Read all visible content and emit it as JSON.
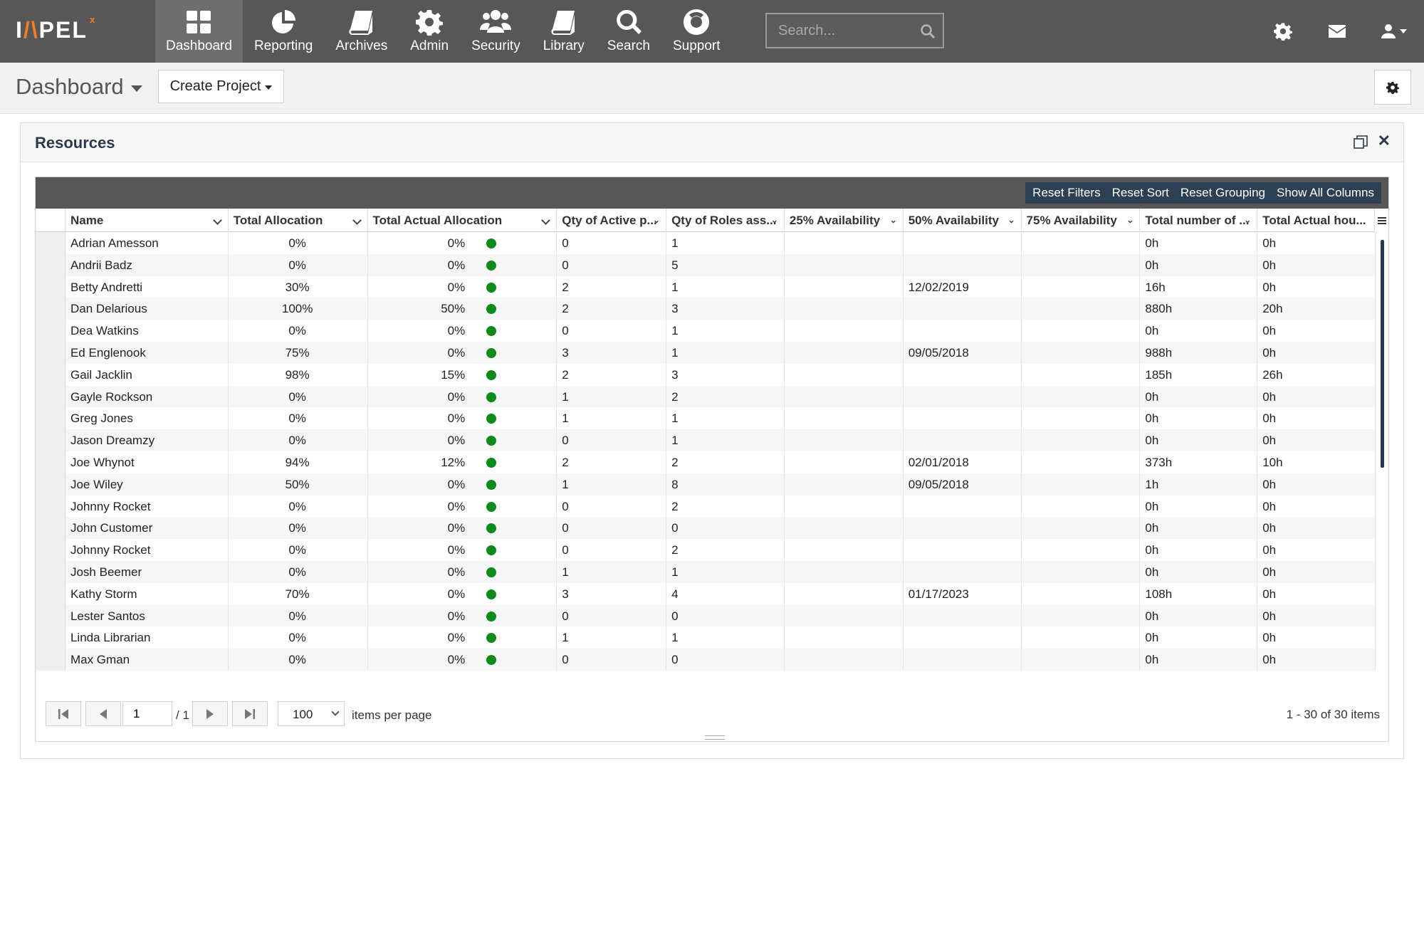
{
  "nav": {
    "logo": {
      "prefix": "I",
      "accent": "/\\",
      "rest": "PEL",
      "sup": "x"
    },
    "items": [
      {
        "label": "Dashboard",
        "icon": "dashboard-icon",
        "active": true
      },
      {
        "label": "Reporting",
        "icon": "pie-chart-icon",
        "active": false
      },
      {
        "label": "Archives",
        "icon": "book-icon",
        "active": false
      },
      {
        "label": "Admin",
        "icon": "gear-icon",
        "active": false
      },
      {
        "label": "Security",
        "icon": "users-icon",
        "active": false
      },
      {
        "label": "Library",
        "icon": "book-icon",
        "active": false
      },
      {
        "label": "Search",
        "icon": "search-icon",
        "active": false
      },
      {
        "label": "Support",
        "icon": "life-ring-icon",
        "active": false
      }
    ],
    "search_placeholder": "Search...",
    "right_icons": [
      "gear-icon",
      "envelope-icon",
      "user-icon"
    ]
  },
  "subheader": {
    "title": "Dashboard",
    "create_label": "Create Project"
  },
  "panel": {
    "title": "Resources"
  },
  "grid": {
    "toolbar": [
      "Reset Filters",
      "Reset Sort",
      "Reset Grouping",
      "Show All Columns"
    ],
    "columns": [
      {
        "label": "Name",
        "w": 229
      },
      {
        "label": "Total Allocation",
        "w": 196
      },
      {
        "label": "Total Actual Allocation",
        "w": 266
      },
      {
        "label": "Qty of Active p...",
        "w": 154
      },
      {
        "label": "Qty of Roles ass...",
        "w": 166
      },
      {
        "label": "25% Availability",
        "w": 167
      },
      {
        "label": "50% Availability",
        "w": 166
      },
      {
        "label": "75% Availability",
        "w": 167
      },
      {
        "label": "Total number of ...",
        "w": 165
      },
      {
        "label": "Total Actual hou...",
        "w": 166
      }
    ],
    "rows": [
      [
        "Adrian Amesson",
        "0%",
        "0%",
        "0",
        "1",
        "",
        "",
        "",
        "0h",
        "0h"
      ],
      [
        "Andrii Badz",
        "0%",
        "0%",
        "0",
        "5",
        "",
        "",
        "",
        "0h",
        "0h"
      ],
      [
        "Betty Andretti",
        "30%",
        "0%",
        "2",
        "1",
        "",
        "12/02/2019",
        "",
        "16h",
        "0h"
      ],
      [
        "Dan Delarious",
        "100%",
        "50%",
        "2",
        "3",
        "",
        "",
        "",
        "880h",
        "20h"
      ],
      [
        "Dea Watkins",
        "0%",
        "0%",
        "0",
        "1",
        "",
        "",
        "",
        "0h",
        "0h"
      ],
      [
        "Ed Englenook",
        "75%",
        "0%",
        "3",
        "1",
        "",
        "09/05/2018",
        "",
        "988h",
        "0h"
      ],
      [
        "Gail Jacklin",
        "98%",
        "15%",
        "2",
        "3",
        "",
        "",
        "",
        "185h",
        "26h"
      ],
      [
        "Gayle Rockson",
        "0%",
        "0%",
        "1",
        "2",
        "",
        "",
        "",
        "0h",
        "0h"
      ],
      [
        "Greg Jones",
        "0%",
        "0%",
        "1",
        "1",
        "",
        "",
        "",
        "0h",
        "0h"
      ],
      [
        "Jason Dreamzy",
        "0%",
        "0%",
        "0",
        "1",
        "",
        "",
        "",
        "0h",
        "0h"
      ],
      [
        "Joe Whynot",
        "94%",
        "12%",
        "2",
        "2",
        "",
        "02/01/2018",
        "",
        "373h",
        "10h"
      ],
      [
        "Joe Wiley",
        "50%",
        "0%",
        "1",
        "8",
        "",
        "09/05/2018",
        "",
        "1h",
        "0h"
      ],
      [
        "Johnny Rocket",
        "0%",
        "0%",
        "0",
        "2",
        "",
        "",
        "",
        "0h",
        "0h"
      ],
      [
        "John Customer",
        "0%",
        "0%",
        "0",
        "0",
        "",
        "",
        "",
        "0h",
        "0h"
      ],
      [
        "Johnny Rocket",
        "0%",
        "0%",
        "0",
        "2",
        "",
        "",
        "",
        "0h",
        "0h"
      ],
      [
        "Josh Beemer",
        "0%",
        "0%",
        "1",
        "1",
        "",
        "",
        "",
        "0h",
        "0h"
      ],
      [
        "Kathy Storm",
        "70%",
        "0%",
        "3",
        "4",
        "",
        "01/17/2023",
        "",
        "108h",
        "0h"
      ],
      [
        "Lester Santos",
        "0%",
        "0%",
        "0",
        "0",
        "",
        "",
        "",
        "0h",
        "0h"
      ],
      [
        "Linda Librarian",
        "0%",
        "0%",
        "1",
        "1",
        "",
        "",
        "",
        "0h",
        "0h"
      ],
      [
        "Max Gman",
        "0%",
        "0%",
        "0",
        "0",
        "",
        "",
        "",
        "0h",
        "0h"
      ]
    ],
    "status_color": "#0f8a1c",
    "pager": {
      "page": "1",
      "of": "/ 1",
      "page_size": "100",
      "items_per_page_label": "items per page",
      "info": "1 - 30 of 30 items"
    }
  },
  "colors": {
    "nav_bg": "#575757",
    "nav_active": "#6e6e6e",
    "toolbar_btn_bg": "#2d3f52",
    "logo_accent": "#f07e26"
  }
}
